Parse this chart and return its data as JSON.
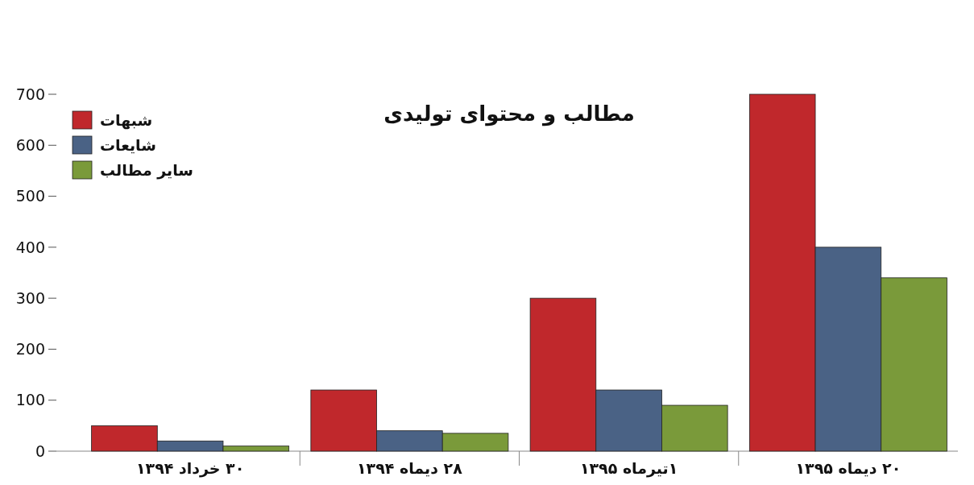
{
  "chart_data": {
    "type": "bar",
    "title": "مطالب و محتوای تولیدی",
    "categories": [
      "۳۰ خرداد ۱۳۹۴",
      "۲۸ دیماه ۱۳۹۴",
      "۱تیرماه ۱۳۹۵",
      "۲۰ دیماه ۱۳۹۵"
    ],
    "series": [
      {
        "name": "شبهات",
        "color": "#c0282c",
        "values": [
          50,
          120,
          300,
          700
        ]
      },
      {
        "name": "شایعات",
        "color": "#4a6285",
        "values": [
          20,
          40,
          120,
          400
        ]
      },
      {
        "name": "سایر مطالب",
        "color": "#7a9a3a",
        "values": [
          10,
          35,
          90,
          340
        ]
      }
    ],
    "ylim": [
      0,
      700
    ],
    "yticks": [
      0,
      100,
      200,
      300,
      400,
      500,
      600,
      700
    ],
    "grid": false,
    "legend": "top left"
  }
}
